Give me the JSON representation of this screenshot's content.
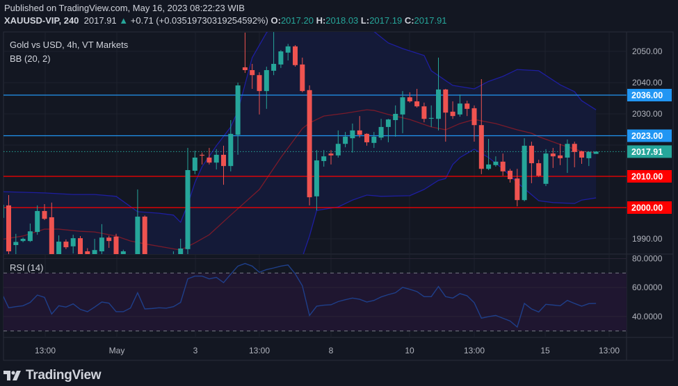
{
  "header": {
    "published": "Published on TradingView.com, May 16, 2023 08:22:23 WIB",
    "symbol": "XAUUSD-VIP, 240",
    "last": "2017.91",
    "change": "+0.71 (+0.03519730319254592%)",
    "open_label": "O:",
    "open": "2017.20",
    "high_label": "H:",
    "high": "2018.03",
    "low_label": "L:",
    "low": "2017.19",
    "close_label": "C:",
    "close": "2017.91"
  },
  "legend": {
    "title": "Gold vs USD, 4h, VT Markets",
    "bb": "BB (20, 2)",
    "rsi": "RSI (14)"
  },
  "logo": {
    "text": "TradingView"
  },
  "colors": {
    "background": "#131722",
    "up": "#26a69a",
    "down": "#ef5350",
    "bb_upper": "#1e1ea0",
    "bb_lower": "#1e1ea0",
    "bb_basis": "#7a1a2a",
    "bb_fill": "#141a3a",
    "rsi_line": "#1f3f8a",
    "rsi_fill": "#1f1630",
    "level_blue": "#2196f3",
    "level_red": "#ff0000",
    "last_price": "#26a69a"
  },
  "chart_data": [
    {
      "type": "candlestick",
      "title": "Gold vs USD, 4h, VT Markets",
      "ylim": [
        1985,
        2055
      ],
      "y_ticks": [
        "2050.00",
        "2040.00",
        "2030.00",
        "1990.00"
      ],
      "x_ticks": [
        "13:00",
        "May",
        "3",
        "13:00",
        "8",
        "10",
        "13:00",
        "15",
        "13:00"
      ],
      "grid": true,
      "candles": [
        [
          1996.7,
          2001.5,
          1995,
          2000.9
        ],
        [
          2000.7,
          2004,
          1983,
          1986
        ],
        [
          1988,
          1991.6,
          1984,
          1989
        ],
        [
          1989.3,
          1990.4,
          1988.9,
          1990
        ],
        [
          1989.3,
          1994.9,
          1989,
          1992.4
        ],
        [
          1992.2,
          2000.7,
          1991.3,
          1998.9
        ],
        [
          1998.9,
          2001.1,
          1996,
          1996.4
        ],
        [
          1996.9,
          2001.6,
          1983,
          1985
        ],
        [
          1985,
          1991.1,
          1983,
          1989.1
        ],
        [
          1989.1,
          1989.8,
          1986.7,
          1987.3
        ],
        [
          1987.6,
          1991.3,
          1985.3,
          1990.2
        ],
        [
          1990.2,
          1990.9,
          1983,
          1985
        ],
        [
          1986,
          1987,
          1983,
          1985
        ],
        [
          1985,
          1990,
          1984,
          1986.4
        ],
        [
          1986,
          1994.7,
          1985,
          1990.4
        ],
        [
          1990.4,
          1991,
          1987.1,
          1989.3
        ],
        [
          1990.7,
          1991.6,
          1983,
          1985
        ],
        [
          1984.6,
          1986.5,
          1983,
          1986
        ],
        [
          1984,
          1984.5,
          1980,
          1982
        ],
        [
          1982,
          2005.8,
          1981,
          1997.1
        ],
        [
          1997.1,
          1997.5,
          1980,
          1983
        ],
        [
          1983,
          1984,
          1978,
          1980
        ],
        [
          1980,
          1983,
          1977,
          1981
        ],
        [
          1981,
          1984,
          1979,
          1982
        ],
        [
          1982,
          1986,
          1980,
          1984
        ],
        [
          1984,
          1990,
          1983,
          1986.9
        ],
        [
          1986.7,
          2019.1,
          1983,
          2012
        ],
        [
          2011.8,
          2018.2,
          2010.7,
          2016
        ],
        [
          2016.9,
          2017.6,
          2013.8,
          2016.7
        ],
        [
          2016,
          2019.1,
          2013.8,
          2014.4
        ],
        [
          2014.4,
          2018.7,
          2012.2,
          2016.9
        ],
        [
          2016.9,
          2019.8,
          2007.3,
          2013.3
        ],
        [
          2013.3,
          2028,
          2011.6,
          2023.6
        ],
        [
          2023.3,
          2040,
          2016.9,
          2039.1
        ],
        [
          2044.9,
          2056,
          2043.1,
          2044
        ],
        [
          2044,
          2046,
          2038,
          2042.4
        ],
        [
          2042.4,
          2043.3,
          2029.8,
          2037.3
        ],
        [
          2037.3,
          2045.1,
          2031.6,
          2044
        ],
        [
          2043.8,
          2056.2,
          2042.4,
          2046
        ],
        [
          2045.8,
          2050.4,
          2044.7,
          2050
        ],
        [
          2049.6,
          2052.4,
          2047.1,
          2051.6
        ],
        [
          2051.6,
          2052,
          2045.1,
          2045.6
        ],
        [
          2045.8,
          2048,
          2036.9,
          2037.3
        ],
        [
          2037.6,
          2039.1,
          2000.7,
          2003.3
        ],
        [
          2003.6,
          2018.4,
          1999.1,
          2015.1
        ],
        [
          2014.9,
          2018.4,
          2013.1,
          2016.4
        ],
        [
          2017.3,
          2018.4,
          2013.8,
          2016.7
        ],
        [
          2016.7,
          2024.7,
          2016,
          2020.4
        ],
        [
          2020.4,
          2024.2,
          2019.3,
          2022.7
        ],
        [
          2022.2,
          2026.9,
          2017.6,
          2024.7
        ],
        [
          2024.7,
          2029.3,
          2022.4,
          2023.3
        ],
        [
          2023.6,
          2023.8,
          2019.8,
          2020.9
        ],
        [
          2020.7,
          2024.2,
          2019.1,
          2022.7
        ],
        [
          2022.4,
          2028.4,
          2021.6,
          2025.8
        ],
        [
          2025.8,
          2028.4,
          2020.9,
          2028.2
        ],
        [
          2028,
          2032.7,
          2022.7,
          2030
        ],
        [
          2029.8,
          2037.3,
          2023.8,
          2035.3
        ],
        [
          2035.3,
          2036.9,
          2033.6,
          2034
        ],
        [
          2034,
          2038,
          2032,
          2032.4
        ],
        [
          2032.4,
          2033.6,
          2027.3,
          2028.4
        ],
        [
          2028.5,
          2032.7,
          2025.8,
          2028.7
        ],
        [
          2028.4,
          2048,
          2024.7,
          2037.8
        ],
        [
          2037.8,
          2038,
          2021.1,
          2030.4
        ],
        [
          2030.7,
          2034,
          2028.4,
          2029.3
        ],
        [
          2029.8,
          2036.2,
          2029.1,
          2033.3
        ],
        [
          2033.3,
          2034.2,
          2029.3,
          2031.6
        ],
        [
          2031.8,
          2032.7,
          2021.1,
          2026.4
        ],
        [
          2026.4,
          2041.1,
          2010.7,
          2012.4
        ],
        [
          2012.4,
          2022,
          2012,
          2013.8
        ],
        [
          2013.6,
          2016.4,
          2013.1,
          2014.7
        ],
        [
          2014.7,
          2017.3,
          2010.2,
          2011.6
        ],
        [
          2011.8,
          2012.4,
          2008,
          2009.1
        ],
        [
          2009.3,
          2012.4,
          2000.4,
          2002.4
        ],
        [
          2002.4,
          2022.2,
          2002,
          2019.8
        ],
        [
          2019.8,
          2021.1,
          2007.8,
          2014.2
        ],
        [
          2014.2,
          2015.3,
          2009.8,
          2010.2
        ],
        [
          2007.6,
          2018.7,
          2006.9,
          2017.3
        ],
        [
          2017.3,
          2019.1,
          2012.7,
          2016.4
        ],
        [
          2016.7,
          2020.4,
          2013.6,
          2015.8
        ],
        [
          2016,
          2021.8,
          2011.1,
          2020.4
        ],
        [
          2020.4,
          2021.1,
          2012.9,
          2017.8
        ],
        [
          2018,
          2018.2,
          2014,
          2016
        ],
        [
          2015.8,
          2018,
          2013.3,
          2017.8
        ],
        [
          2017.2,
          2018.03,
          2017.19,
          2017.91
        ]
      ],
      "bollinger": {
        "name": "BB (20, 2)",
        "upper": [
          [
            0,
            2005.1
          ],
          [
            6,
            2004.7
          ],
          [
            10,
            2004.2
          ],
          [
            13,
            2004.2
          ],
          [
            16,
            2003.6
          ],
          [
            19,
            1998.7
          ],
          [
            22,
            1998.2
          ],
          [
            24,
            1997.6
          ],
          [
            25,
            1995.3
          ],
          [
            26,
            2001
          ],
          [
            27,
            2008
          ],
          [
            28,
            2013.1
          ],
          [
            30,
            2019.8
          ],
          [
            32,
            2025.8
          ],
          [
            33,
            2030.9
          ],
          [
            35,
            2048
          ],
          [
            37,
            2056
          ],
          [
            40,
            2062
          ],
          [
            46,
            2064
          ],
          [
            50,
            2060
          ],
          [
            54,
            2052.7
          ],
          [
            56,
            2050.9
          ],
          [
            59,
            2048.7
          ],
          [
            60,
            2043.8
          ],
          [
            63,
            2039.1
          ],
          [
            66,
            2038
          ],
          [
            68,
            2040.4
          ],
          [
            70,
            2042
          ],
          [
            72,
            2044.2
          ],
          [
            75,
            2043.8
          ],
          [
            78,
            2039.3
          ],
          [
            80,
            2037.1
          ],
          [
            81,
            2034.2
          ],
          [
            83,
            2031.3
          ]
        ],
        "basis": [
          [
            0,
            1989.8
          ],
          [
            3,
            1990.9
          ],
          [
            6,
            1993.1
          ],
          [
            8,
            1993.1
          ],
          [
            11,
            1992.4
          ],
          [
            13,
            1992.2
          ],
          [
            16,
            1990.9
          ],
          [
            18,
            1989.3
          ],
          [
            20,
            1988.4
          ],
          [
            25,
            1986.4
          ],
          [
            27,
            1988.7
          ],
          [
            29,
            1991.3
          ],
          [
            32,
            1997.6
          ],
          [
            36,
            2005.8
          ],
          [
            39,
            2016
          ],
          [
            42,
            2025.3
          ],
          [
            43,
            2027.1
          ],
          [
            45,
            2029.3
          ],
          [
            48,
            2030.2
          ],
          [
            51,
            2031.3
          ],
          [
            52,
            2031.1
          ],
          [
            54,
            2029.8
          ],
          [
            57,
            2028.2
          ],
          [
            60,
            2025.8
          ],
          [
            62,
            2024.9
          ],
          [
            64,
            2026.9
          ],
          [
            66,
            2028.2
          ],
          [
            69,
            2026.9
          ],
          [
            72,
            2024.9
          ],
          [
            74,
            2023.8
          ],
          [
            75,
            2022.7
          ],
          [
            78,
            2020.2
          ],
          [
            81,
            2018
          ],
          [
            83,
            2017.6
          ]
        ],
        "lower": [
          [
            0,
            1972
          ],
          [
            30,
            1970
          ],
          [
            40,
            1975
          ],
          [
            42,
            1984.2
          ],
          [
            43,
            1990.9
          ],
          [
            44,
            1999.1
          ],
          [
            47,
            2000.2
          ],
          [
            49,
            2002.4
          ],
          [
            51,
            2004
          ],
          [
            53,
            2003.6
          ],
          [
            57,
            2003.8
          ],
          [
            59,
            2005.8
          ],
          [
            61,
            2008.7
          ],
          [
            62,
            2009.3
          ],
          [
            63,
            2013.8
          ],
          [
            64,
            2016
          ],
          [
            66,
            2018.7
          ],
          [
            68,
            2016
          ],
          [
            70,
            2012.4
          ],
          [
            72,
            2008
          ],
          [
            75,
            2002.2
          ],
          [
            77,
            2001.6
          ],
          [
            80,
            2001.3
          ],
          [
            81,
            2002.4
          ],
          [
            83,
            2003.1
          ]
        ]
      },
      "levels": [
        {
          "price": 2036,
          "label": "2036.00",
          "color": "#2196f3"
        },
        {
          "price": 2023,
          "label": "2023.00",
          "color": "#2196f3"
        },
        {
          "price": 2010,
          "label": "2010.00",
          "color": "#ff0000"
        },
        {
          "price": 2000,
          "label": "2000.00",
          "color": "#ff0000"
        }
      ],
      "last_price": {
        "price": 2017.91,
        "label": "2017.91"
      }
    },
    {
      "type": "line",
      "title": "RSI (14)",
      "ylim": [
        25,
        85
      ],
      "y_ticks": [
        "80.0000",
        "60.0000",
        "40.0000"
      ],
      "bands": [
        70,
        30
      ],
      "values": [
        56.4,
        46,
        46.8,
        47.4,
        49.7,
        54.8,
        53.2,
        41.7,
        47.4,
        46.5,
        48.7,
        44.9,
        43.3,
        46.5,
        50,
        49.2,
        43.3,
        43.3,
        45.8,
        56.4,
        45.2,
        45.5,
        46,
        45.7,
        46.8,
        49.7,
        66,
        67.9,
        67.9,
        66,
        67,
        63.4,
        69.2,
        74.8,
        76.6,
        74.8,
        70.5,
        72.4,
        73.5,
        74.8,
        75.6,
        69.5,
        61.2,
        40.7,
        47.1,
        47.8,
        48.1,
        50.3,
        51.6,
        52.7,
        51.9,
        50,
        51.1,
        53.5,
        55.1,
        56.4,
        60.1,
        58.8,
        57.2,
        53.7,
        53.7,
        60.7,
        53.7,
        52.7,
        55.8,
        54.3,
        49.5,
        38.8,
        39.9,
        40.7,
        38.8,
        36.9,
        32.7,
        49,
        45.2,
        43.1,
        48.4,
        47.9,
        47.4,
        51.1,
        49,
        47.1,
        48.9,
        49
      ]
    }
  ]
}
